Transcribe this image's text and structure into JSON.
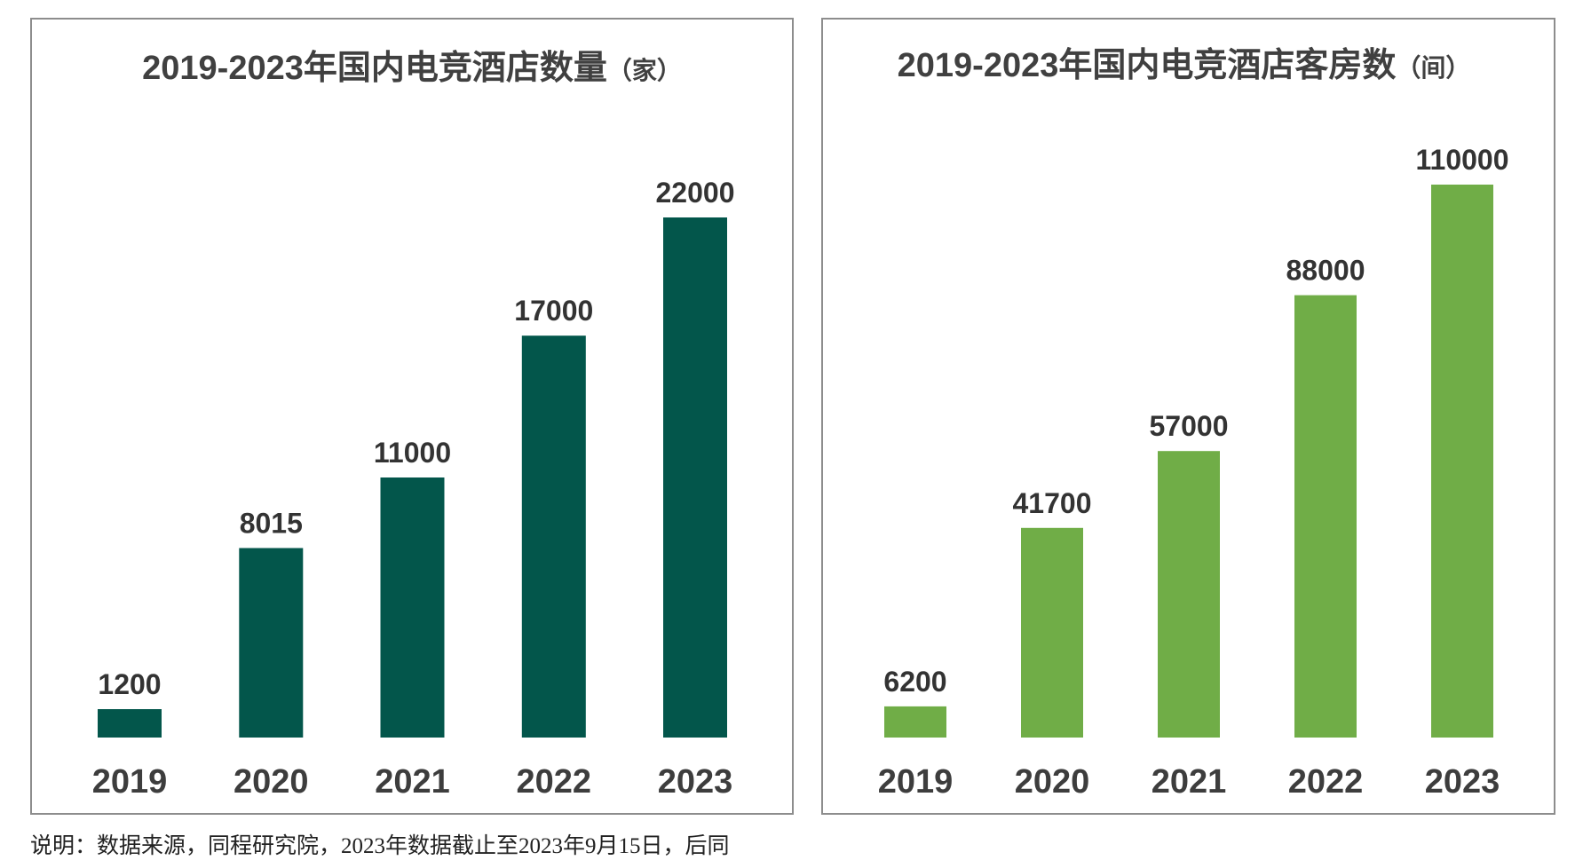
{
  "chart_data": [
    {
      "type": "bar",
      "title": "2019-2023年国内电竞酒店数量",
      "title_unit": "（家）",
      "categories": [
        "2019",
        "2020",
        "2021",
        "2022",
        "2023"
      ],
      "values": [
        1200,
        8015,
        11000,
        17000,
        22000
      ],
      "ylim": [
        0,
        22000
      ],
      "grid": false,
      "color": "#03564B"
    },
    {
      "type": "bar",
      "title": "2019-2023年国内电竞酒店客房数",
      "title_unit": "（间）",
      "categories": [
        "2019",
        "2020",
        "2021",
        "2022",
        "2023"
      ],
      "values": [
        6200,
        41700,
        57000,
        88000,
        110000
      ],
      "ylim": [
        0,
        110000
      ],
      "grid": false,
      "color": "#70AD47"
    }
  ],
  "note": "说明：数据来源，同程研究院，2023年数据截止至2023年9月15日，后同"
}
